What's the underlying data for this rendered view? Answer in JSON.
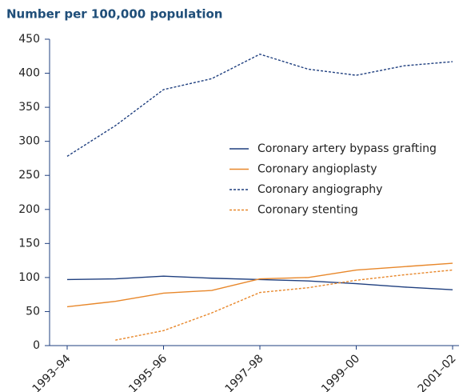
{
  "chart_data": {
    "type": "line",
    "title": "Number per 100,000 population",
    "categories": [
      "1993–94",
      null,
      "1995–96",
      null,
      "1997–98",
      null,
      "1999–00",
      null,
      "2001–02"
    ],
    "series": [
      {
        "name": "Coronary artery bypass grafting",
        "color": "#1f3f7f",
        "line_style": "solid",
        "values": [
          97,
          98,
          102,
          99,
          97,
          95,
          91,
          86,
          82
        ]
      },
      {
        "name": "Coronary angioplasty",
        "color": "#e8872a",
        "line_style": "solid",
        "values": [
          57,
          65,
          77,
          81,
          98,
          100,
          111,
          116,
          121
        ]
      },
      {
        "name": "Coronary angiography",
        "color": "#1f3f7f",
        "line_style": "dashed",
        "values": [
          278,
          323,
          376,
          392,
          428,
          406,
          397,
          411,
          417
        ]
      },
      {
        "name": "Coronary stenting",
        "color": "#e8872a",
        "line_style": "dashed",
        "values": [
          null,
          8,
          22,
          48,
          78,
          85,
          96,
          104,
          111
        ]
      }
    ],
    "ylim": [
      0,
      450
    ],
    "yticks": [
      0,
      50,
      100,
      150,
      200,
      250,
      300,
      350,
      400,
      450
    ],
    "grid": false
  }
}
